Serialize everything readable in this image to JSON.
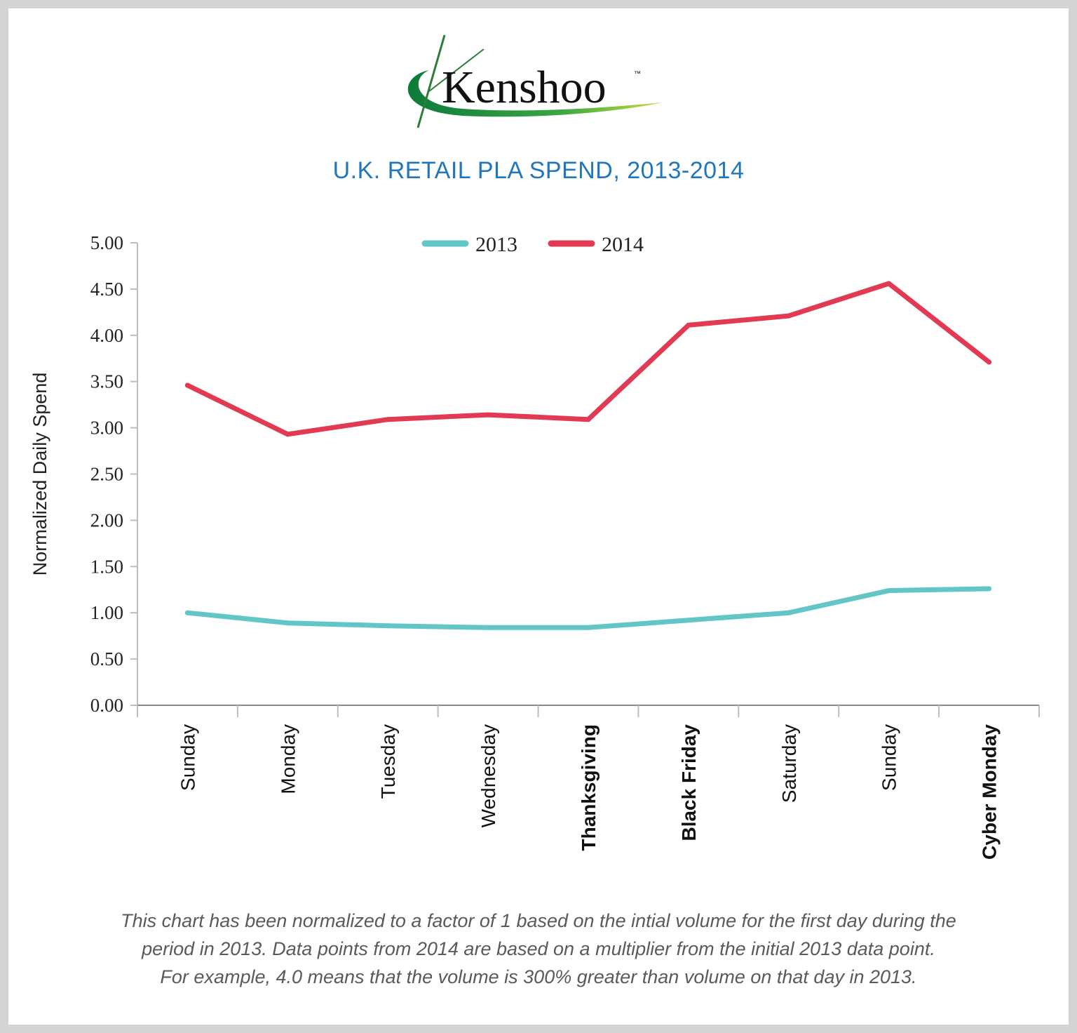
{
  "logo": {
    "text": "Kenshoo",
    "tm": "™"
  },
  "chart_data": {
    "type": "line",
    "title": "U.K. RETAIL PLA SPEND, 2013-2014",
    "xlabel": "",
    "ylabel": "Normalized Daily Spend",
    "ylim": [
      0,
      5
    ],
    "yticks": [
      "0.00",
      "0.50",
      "1.00",
      "1.50",
      "2.00",
      "2.50",
      "3.00",
      "3.50",
      "4.00",
      "4.50",
      "5.00"
    ],
    "categories": [
      "Sunday",
      "Monday",
      "Tuesday",
      "Wednesday",
      "Thanksgiving",
      "Black Friday",
      "Saturday",
      "Sunday",
      "Cyber Monday"
    ],
    "bold_categories": [
      "Thanksgiving",
      "Black Friday",
      "Cyber Monday"
    ],
    "series": [
      {
        "name": "2013",
        "color": "#62c6c6",
        "values": [
          1.0,
          0.89,
          0.86,
          0.84,
          0.84,
          0.92,
          1.0,
          1.24,
          1.26
        ]
      },
      {
        "name": "2014",
        "color": "#e23a52",
        "values": [
          3.46,
          2.93,
          3.09,
          3.14,
          3.09,
          4.11,
          4.21,
          4.56,
          3.71
        ]
      }
    ],
    "legend": "top-center",
    "grid": false
  },
  "footnote": {
    "line1": "This chart has been normalized to a factor of 1 based on the intial volume for the first day during the",
    "line2": "period in 2013. Data points from 2014 are based on a multiplier from the initial 2013 data point.",
    "line3": "For example, 4.0 means that the volume is 300% greater than volume on that day in 2013."
  }
}
